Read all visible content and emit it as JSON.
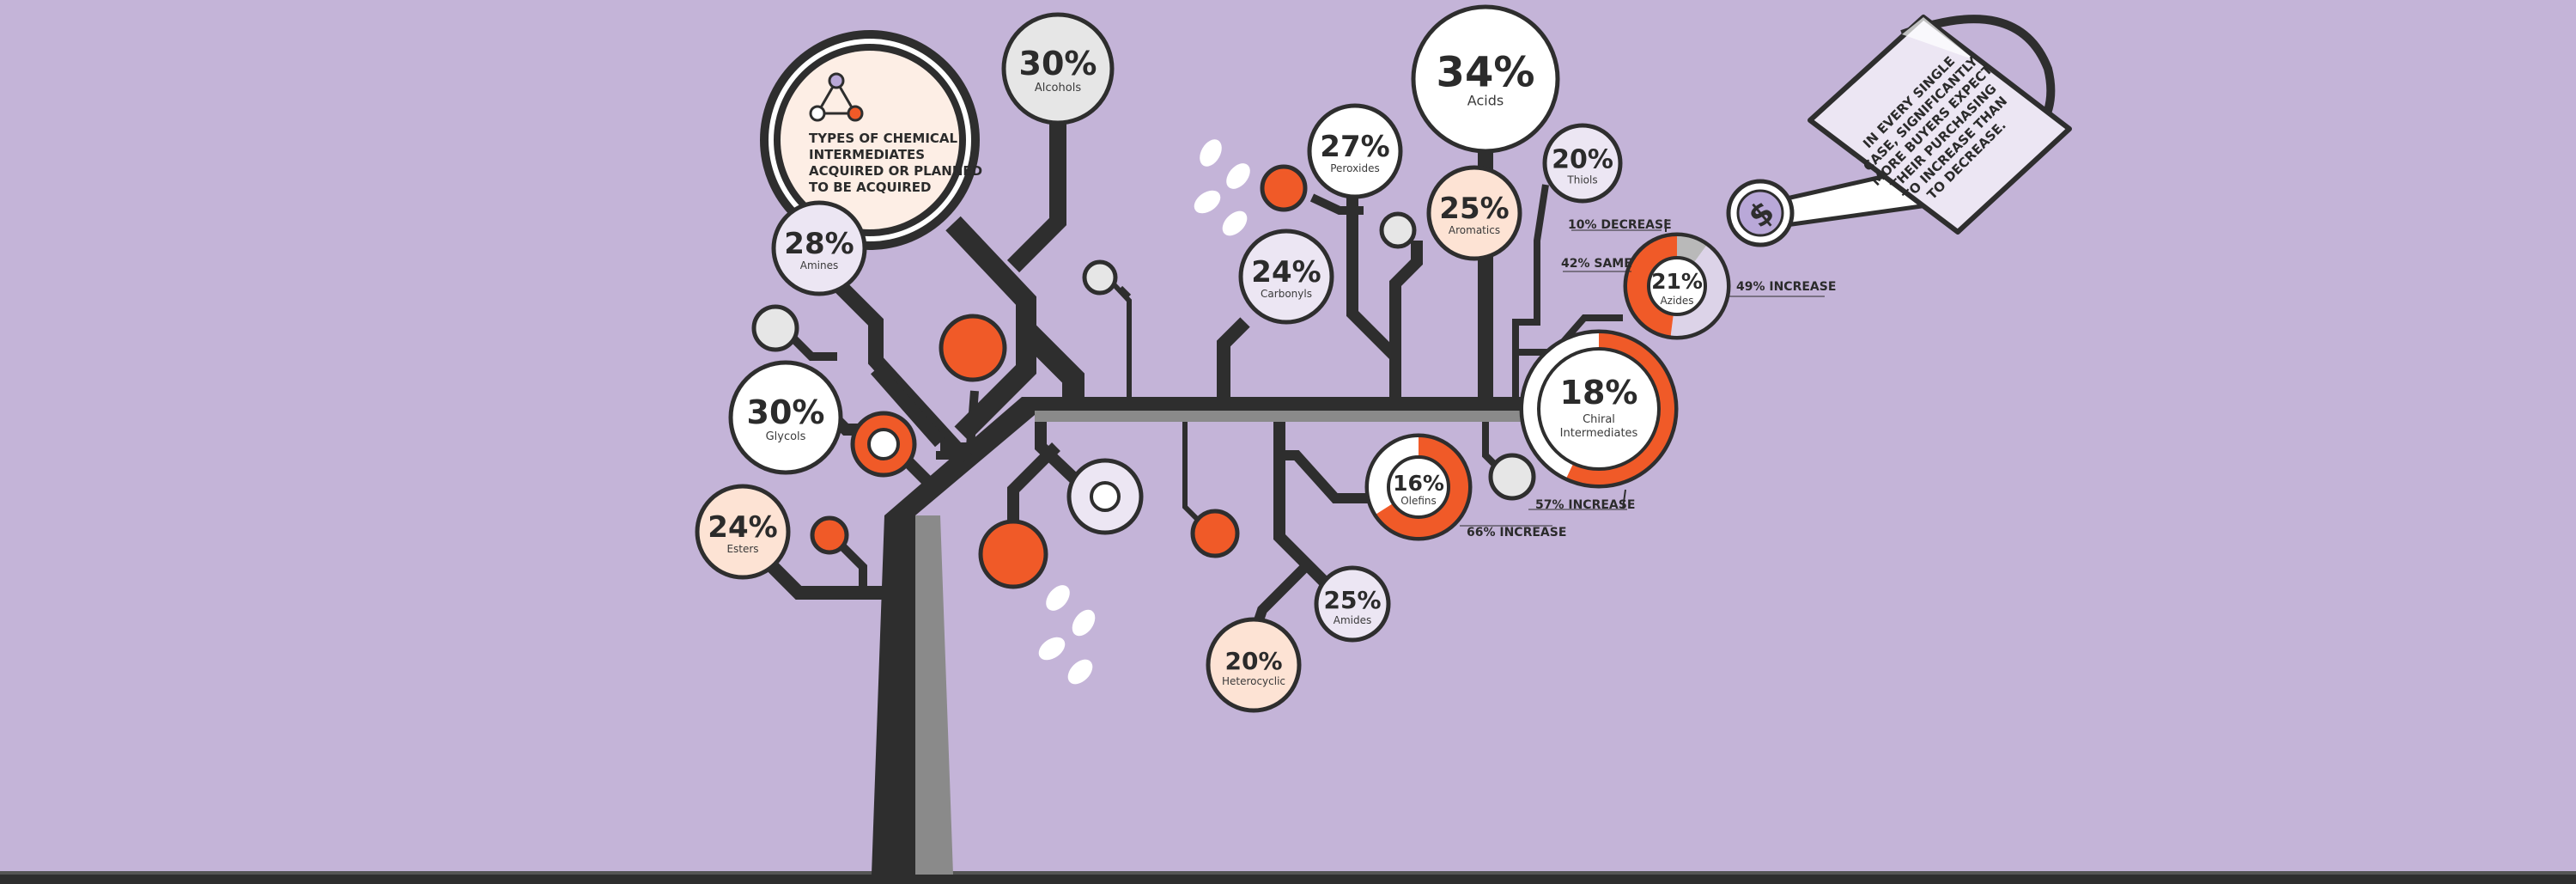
{
  "title": {
    "lines": [
      "TYPES OF CHEMICAL",
      "INTERMEDIATES",
      "ACQUIRED OR PLANNED",
      "TO BE ACQUIRED"
    ],
    "icon": "molecule-icon"
  },
  "categories": [
    {
      "id": "alcohols",
      "label": "Alcohols",
      "value": "30%"
    },
    {
      "id": "acids",
      "label": "Acids",
      "value": "34%"
    },
    {
      "id": "peroxides",
      "label": "Peroxides",
      "value": "27%"
    },
    {
      "id": "thiols",
      "label": "Thiols",
      "value": "20%"
    },
    {
      "id": "aromatics",
      "label": "Aromatics",
      "value": "25%"
    },
    {
      "id": "amines",
      "label": "Amines",
      "value": "28%"
    },
    {
      "id": "carbonyls",
      "label": "Carbonyls",
      "value": "24%"
    },
    {
      "id": "glycols",
      "label": "Glycols",
      "value": "30%"
    },
    {
      "id": "esters",
      "label": "Esters",
      "value": "24%"
    },
    {
      "id": "amides",
      "label": "Amides",
      "value": "25%"
    },
    {
      "id": "heterocyclic",
      "label": "Heterocyclic",
      "value": "20%"
    }
  ],
  "donuts": {
    "azides": {
      "value": "21%",
      "label": "Azides",
      "segments": [
        {
          "name": "decrease",
          "label": "10% DECREASE",
          "fraction": 0.1,
          "color": "#b9b9b9"
        },
        {
          "name": "same",
          "label": "42% SAME",
          "fraction": 0.42,
          "color": "#dcd3e8"
        },
        {
          "name": "increase",
          "label": "49% INCREASE",
          "fraction": 0.49,
          "color": "#f05a28"
        }
      ]
    },
    "chiral": {
      "value": "18%",
      "label_lines": [
        "Chiral",
        "Intermediates"
      ],
      "increase_label": "57% INCREASE",
      "increase_fraction": 0.57
    },
    "olefins": {
      "value": "16%",
      "label": "Olefins",
      "increase_label": "66% INCREASE",
      "increase_fraction": 0.66
    }
  },
  "watering_can": {
    "lines": [
      "IN EVERY SINGLE",
      "CASE, SIGNIFICANTLY",
      "MORE BUYERS EXPECT",
      "THEIR PURCHASING",
      "TO INCREASE THAN",
      "TO DECREASE."
    ],
    "icon": "dollar-icon"
  },
  "colors": {
    "background": "#c4b4d8",
    "trunk": "#2e2e2e",
    "accent_orange": "#f05a28",
    "gray_branch": "#8a8a8a",
    "node_white": "#ffffff",
    "node_peach": "#fde3d4",
    "node_lavender": "#ece6f3",
    "node_light": "#e6e6e6"
  }
}
